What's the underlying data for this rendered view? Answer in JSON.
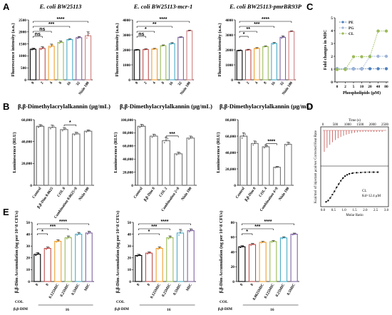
{
  "panel_letters": [
    "A",
    "B",
    "C",
    "D",
    "E"
  ],
  "colors": {
    "bar_fill": "#ffffff",
    "axis": "#000000",
    "errbar": "#000000"
  },
  "chart_data": [
    {
      "id": "A1",
      "type": "bar",
      "title": "E. coli BW25113",
      "ylabel": "Fluorescence intensity (a.u.)",
      "categories": [
        "0",
        "2",
        "4",
        "8",
        "16",
        "32",
        "Nisin 100"
      ],
      "values": [
        1280,
        1310,
        1400,
        1560,
        1680,
        1760,
        1840
      ],
      "errors": [
        40,
        70,
        90,
        60,
        30,
        50,
        160
      ],
      "bar_colors": [
        "#000000",
        "#c0504d",
        "#f0a030",
        "#9bbb59",
        "#4bacc6",
        "#8064a2",
        "#d08080"
      ],
      "ylim": [
        0,
        2500
      ],
      "yticks": [
        0,
        500,
        1000,
        1500,
        2000,
        2500
      ],
      "brackets": [
        {
          "from": 0,
          "to": 1,
          "label": "ns"
        },
        {
          "from": 0,
          "to": 2,
          "label": "ns"
        },
        {
          "from": 0,
          "to": 4,
          "label": "***"
        },
        {
          "from": 0,
          "to": 6,
          "label": "****"
        }
      ]
    },
    {
      "id": "A2",
      "type": "bar",
      "title": "E. coli BW25113-mcr-1",
      "ylabel": "Fluorescence intensity (a.u.)",
      "categories": [
        "0",
        "2",
        "4",
        "8",
        "16",
        "32",
        "Nisin 100"
      ],
      "values": [
        2000,
        2030,
        2060,
        2280,
        2420,
        2840,
        3280
      ],
      "errors": [
        30,
        40,
        40,
        50,
        60,
        30,
        40
      ],
      "bar_colors": [
        "#000000",
        "#c0504d",
        "#f0a030",
        "#9bbb59",
        "#4bacc6",
        "#8064a2",
        "#d08080"
      ],
      "ylim": [
        0,
        4000
      ],
      "yticks": [
        0,
        1000,
        2000,
        3000,
        4000
      ],
      "brackets": [
        {
          "from": 0,
          "to": 1,
          "label": "ns"
        },
        {
          "from": 0,
          "to": 2,
          "label": "*"
        },
        {
          "from": 0,
          "to": 4,
          "label": "**"
        },
        {
          "from": 0,
          "to": 6,
          "label": "****"
        }
      ]
    },
    {
      "id": "A3",
      "type": "bar",
      "title": "E. coli BW25113-pmrBR93P",
      "ylabel": "Fluorescence intensity (a.u.)",
      "categories": [
        "0",
        "2",
        "4",
        "8",
        "16",
        "32",
        "Nisin 100"
      ],
      "values": [
        1960,
        2000,
        2100,
        2220,
        2430,
        2840,
        3230
      ],
      "errors": [
        30,
        40,
        50,
        40,
        60,
        90,
        40
      ],
      "bar_colors": [
        "#000000",
        "#c0504d",
        "#f0a030",
        "#9bbb59",
        "#4bacc6",
        "#8064a2",
        "#d08080"
      ],
      "ylim": [
        0,
        4000
      ],
      "yticks": [
        0,
        1000,
        2000,
        3000,
        4000
      ],
      "brackets": [
        {
          "from": 0,
          "to": 1,
          "label": "*"
        },
        {
          "from": 0,
          "to": 2,
          "label": "**"
        },
        {
          "from": 0,
          "to": 4,
          "label": "***"
        },
        {
          "from": 0,
          "to": 6,
          "label": "****"
        }
      ]
    },
    {
      "id": "C",
      "type": "line",
      "title": "",
      "ylabel": "Fold changes in MIC",
      "xlabel": "Phospholipids (μM)",
      "x": [
        "0",
        "2",
        "5",
        "10",
        "20",
        "40",
        "80"
      ],
      "ylim": [
        0,
        5
      ],
      "yticks": [
        0,
        1,
        2,
        3,
        4,
        5
      ],
      "legend_position": "top-left",
      "series": [
        {
          "name": "PE",
          "values": [
            1,
            1,
            1,
            1,
            1,
            1,
            1
          ],
          "color": "#4f81bd"
        },
        {
          "name": "PG",
          "values": [
            1,
            1,
            1,
            1,
            2,
            2,
            2
          ],
          "color": "#9fb4d8"
        },
        {
          "name": "CL",
          "values": [
            1,
            1,
            2,
            2,
            2,
            4,
            4
          ],
          "color": "#9bbb59"
        }
      ]
    },
    {
      "id": "B1",
      "type": "bar",
      "title": "β,β-Dimethylacrylalkannin (μg/mL)",
      "ylabel": "Luminescence (RLU)",
      "categories": [
        "Control",
        "β,β-Dim 0.0625",
        "COL 8",
        "Combination 0.0625+8",
        "Nisin 100"
      ],
      "values": [
        54000,
        53000,
        51000,
        47000,
        49500
      ],
      "errors": [
        1500,
        2000,
        1800,
        1500,
        1200
      ],
      "bar_colors": [
        "#666666",
        "#777777",
        "#777777",
        "#777777",
        "#777777"
      ],
      "ylim": [
        0,
        60000
      ],
      "yticks": [
        0,
        20000,
        40000,
        60000
      ],
      "ytick_labels": [
        "0",
        "20,000",
        "40,000",
        "60,000"
      ],
      "brackets": [
        {
          "from": 2,
          "to": 3,
          "label": "*"
        }
      ]
    },
    {
      "id": "B2",
      "type": "bar",
      "title": "β,β-Dimethylacrylalkannin (μg/mL)",
      "ylabel": "Luminescence (RLU)",
      "categories": [
        "Control",
        "β,β-Dim 8",
        "COL 2",
        "Combination 2+8",
        "Nisin 100"
      ],
      "values": [
        90000,
        75000,
        68000,
        48000,
        72000
      ],
      "errors": [
        3000,
        3000,
        5000,
        2500,
        3000
      ],
      "bar_colors": [
        "#666666",
        "#777777",
        "#777777",
        "#777777",
        "#777777"
      ],
      "ylim": [
        0,
        100000
      ],
      "yticks": [
        0,
        20000,
        40000,
        60000,
        80000,
        100000
      ],
      "ytick_labels": [
        "0",
        "20,000",
        "40,000",
        "60,000",
        "80,000",
        "100,000"
      ],
      "brackets": [
        {
          "from": 2,
          "to": 3,
          "label": "***"
        }
      ]
    },
    {
      "id": "B3",
      "type": "bar",
      "title": "β,β-Dimethylacrylalkannin (μg/mL)",
      "ylabel": "Luminescence (RLU)",
      "categories": [
        "Control",
        "β,β-Dim 8",
        "COL 4",
        "Combination 4+8",
        "Nisin 100"
      ],
      "values": [
        60000,
        51000,
        47000,
        22000,
        50000
      ],
      "errors": [
        4000,
        3000,
        2000,
        1000,
        2500
      ],
      "bar_colors": [
        "#666666",
        "#777777",
        "#777777",
        "#777777",
        "#777777"
      ],
      "ylim": [
        0,
        80000
      ],
      "yticks": [
        0,
        20000,
        40000,
        60000,
        80000
      ],
      "ytick_labels": [
        "0",
        "20,000",
        "40,000",
        "60,000",
        "80,000"
      ],
      "brackets": [
        {
          "from": 2,
          "to": 3,
          "label": "****"
        }
      ]
    },
    {
      "id": "D",
      "type": "scatter",
      "title": "",
      "top_xlabel": "Time (s)",
      "top_xticks": [
        "0",
        "500",
        "1000",
        "1500",
        "2000",
        "2500"
      ],
      "ylabel": "Kcal/mol of injectant    μcal/sec   Corrected Heat Rate",
      "xlabel": "Molar Ratio",
      "xticks": [
        "0.0",
        "0.5",
        "1.0",
        "1.5",
        "2.0",
        "2.5",
        "3.0"
      ],
      "legend": [
        "CL",
        "Kd=12.4 μM"
      ],
      "x": [
        0.15,
        0.25,
        0.35,
        0.45,
        0.55,
        0.65,
        0.75,
        0.85,
        0.95,
        1.05,
        1.15,
        1.25,
        1.4,
        1.6,
        1.8,
        2.0,
        2.2,
        2.4,
        2.6
      ],
      "y": [
        -4.6,
        -4.4,
        -4.0,
        -3.5,
        -3.0,
        -2.4,
        -1.9,
        -1.4,
        -1.0,
        -0.7,
        -0.5,
        -0.35,
        -0.25,
        -0.18,
        -0.15,
        -0.12,
        -0.1,
        -0.1,
        -0.1
      ]
    },
    {
      "id": "E1",
      "type": "bar",
      "title": "",
      "ylabel": "β,β-Dim Accumulation (ng per 10^8 CFUs)",
      "categories": [
        "0",
        "0",
        "0.125MIC",
        "0.25MIC",
        "0.5MIC",
        "MIC"
      ],
      "row_labels": {
        "col": "COL",
        "dim": "β,β-DIM",
        "dim_value": "16"
      },
      "values": [
        23,
        28,
        34,
        37,
        40,
        41
      ],
      "errors": [
        1.5,
        1.2,
        1.2,
        1.5,
        1.5,
        1.5
      ],
      "bar_colors": [
        "#000000",
        "#c0504d",
        "#f0a030",
        "#9bbb59",
        "#4bacc6",
        "#8064a2"
      ],
      "ylim": [
        0,
        50
      ],
      "yticks": [
        0,
        10,
        20,
        30,
        40,
        50
      ],
      "brackets": [
        {
          "from": 0,
          "to": 1,
          "label": "*"
        },
        {
          "from": 0,
          "to": 3,
          "label": "***"
        },
        {
          "from": 0,
          "to": 5,
          "label": "****"
        }
      ]
    },
    {
      "id": "E2",
      "type": "bar",
      "title": "",
      "ylabel": "β,β-Dim Accumulation (ng per 10^8 CFUs)",
      "categories": [
        "0",
        "0",
        "0.125MIC",
        "0.25MIC",
        "0.5MIC",
        "MIC"
      ],
      "row_labels": {
        "col": "COL",
        "dim": "β,β-DIM",
        "dim_value": "16"
      },
      "values": [
        22,
        24,
        28,
        37,
        41,
        43
      ],
      "errors": [
        1.0,
        1.0,
        1.2,
        1.5,
        3.0,
        1.5
      ],
      "bar_colors": [
        "#000000",
        "#c0504d",
        "#f0a030",
        "#9bbb59",
        "#4bacc6",
        "#8064a2"
      ],
      "ylim": [
        0,
        50
      ],
      "yticks": [
        0,
        10,
        20,
        30,
        40,
        50
      ],
      "brackets": [
        {
          "from": 0,
          "to": 2,
          "label": "*"
        },
        {
          "from": 0,
          "to": 3,
          "label": "***"
        },
        {
          "from": 0,
          "to": 5,
          "label": "****"
        }
      ]
    },
    {
      "id": "E3",
      "type": "bar",
      "title": "",
      "ylabel": "β,β-Dim Accumulation (ng per 10^8 CFUs)",
      "categories": [
        "0",
        "0",
        "0.0625MIC",
        "0.125MIC",
        "0.25MIC",
        "0.5MIC"
      ],
      "row_labels": {
        "col": "COL",
        "dim": "β,β-DIM",
        "dim_value": "16"
      },
      "values": [
        47,
        50,
        53,
        54,
        59,
        64
      ],
      "errors": [
        1.5,
        1.5,
        1.2,
        1.2,
        1.5,
        1.5
      ],
      "bar_colors": [
        "#000000",
        "#c0504d",
        "#f0a030",
        "#9bbb59",
        "#4bacc6",
        "#8064a2"
      ],
      "ylim": [
        0,
        80
      ],
      "yticks": [
        0,
        20,
        40,
        60,
        80
      ],
      "brackets": [
        {
          "from": 0,
          "to": 1,
          "label": "*"
        },
        {
          "from": 0,
          "to": 3,
          "label": "***"
        },
        {
          "from": 0,
          "to": 5,
          "label": "****"
        }
      ]
    }
  ]
}
